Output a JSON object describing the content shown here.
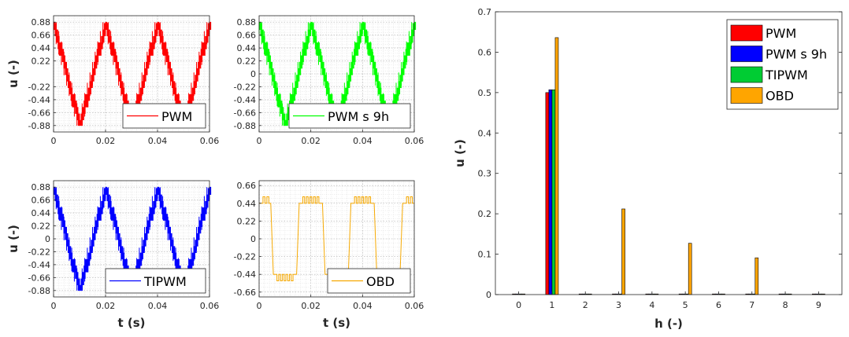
{
  "chart_data": [
    {
      "type": "line",
      "legend": "PWM",
      "color": "#ff0000",
      "ylabel": "u (-)",
      "xlabel": "",
      "xlim": [
        0,
        0.06
      ],
      "x_ticks": [
        "0",
        "0.02",
        "0.04",
        "0.06"
      ],
      "y_ticks": [
        "0.88",
        "0.66",
        "0.44",
        "0.22",
        "-0.22",
        "-0.44",
        "-0.66",
        "-0.88"
      ],
      "ylim": [
        -0.99,
        0.99
      ],
      "waveform": "stepped-triangular band, 3 periods over 0-0.06 s, peaks ±0.88",
      "legend_position": "bottom-right",
      "grid": true
    },
    {
      "type": "line",
      "legend": "PWM s 9h",
      "color": "#00ff00",
      "ylabel": "",
      "xlabel": "",
      "xlim": [
        0,
        0.06
      ],
      "x_ticks": [
        "0",
        "0.02",
        "0.04",
        "0.06"
      ],
      "y_ticks": [
        "0.88",
        "0.66",
        "0.44",
        "0.22",
        "0",
        "-0.22",
        "-0.44",
        "-0.66",
        "-0.88"
      ],
      "ylim": [
        -0.99,
        0.99
      ],
      "waveform": "stepped-triangular band, 3 periods over 0-0.06 s, peaks ±0.88",
      "legend_position": "bottom-right",
      "grid": true
    },
    {
      "type": "line",
      "legend": "TIPWM",
      "color": "#0000ff",
      "ylabel": "u (-)",
      "xlabel": "t (s)",
      "xlim": [
        0,
        0.06
      ],
      "x_ticks": [
        "0",
        "0.02",
        "0.04",
        "0.06"
      ],
      "y_ticks": [
        "0.88",
        "0.66",
        "0.44",
        "0.22",
        "0",
        "-0.22",
        "-0.44",
        "-0.66",
        "-0.88"
      ],
      "ylim": [
        -0.99,
        0.99
      ],
      "waveform": "stepped-triangular band, 3 periods over 0-0.06 s, peaks ±0.88",
      "legend_position": "bottom-right",
      "grid": true
    },
    {
      "type": "line",
      "legend": "OBD",
      "color": "#f5a800",
      "ylabel": "",
      "xlabel": "t (s)",
      "xlim": [
        0,
        0.06
      ],
      "x_ticks": [
        "0",
        "0.02",
        "0.04",
        "0.06"
      ],
      "y_ticks": [
        "0.66",
        "0.44",
        "0.22",
        "0",
        "-0.22",
        "-0.44",
        "-0.66"
      ],
      "ylim": [
        -0.72,
        0.72
      ],
      "levels": [
        0.44,
        0.52,
        -0.44,
        -0.52
      ],
      "waveform": "quasi-square wave with switching ripple between ±0.44 and ±0.52, period 0.02 s",
      "legend_position": "bottom-right",
      "grid": true
    },
    {
      "type": "bar",
      "xlabel": "h (-)",
      "ylabel": "u (-)",
      "ylim": [
        0,
        0.7
      ],
      "y_ticks": [
        "0",
        "0.1",
        "0.2",
        "0.3",
        "0.4",
        "0.5",
        "0.6",
        "0.7"
      ],
      "categories": [
        "0",
        "1",
        "2",
        "3",
        "4",
        "5",
        "6",
        "7",
        "8",
        "9"
      ],
      "series": [
        {
          "name": "PWM",
          "color": "#ff0000",
          "values": [
            0,
            0.5,
            0,
            0,
            0,
            0,
            0,
            0,
            0,
            0
          ]
        },
        {
          "name": "PWM s 9h",
          "color": "#0000ff",
          "values": [
            0,
            0.507,
            0,
            0.001,
            0,
            0,
            0,
            0,
            0,
            0
          ]
        },
        {
          "name": "TIPWM",
          "color": "#00cc33",
          "values": [
            0,
            0.507,
            0,
            0,
            0,
            0,
            0,
            0,
            0,
            0
          ]
        },
        {
          "name": "OBD",
          "color": "#ffa500",
          "values": [
            0,
            0.636,
            0,
            0.212,
            0,
            0.127,
            0,
            0.091,
            0,
            0
          ]
        }
      ],
      "legend_position": "top-right",
      "grid": false
    }
  ]
}
